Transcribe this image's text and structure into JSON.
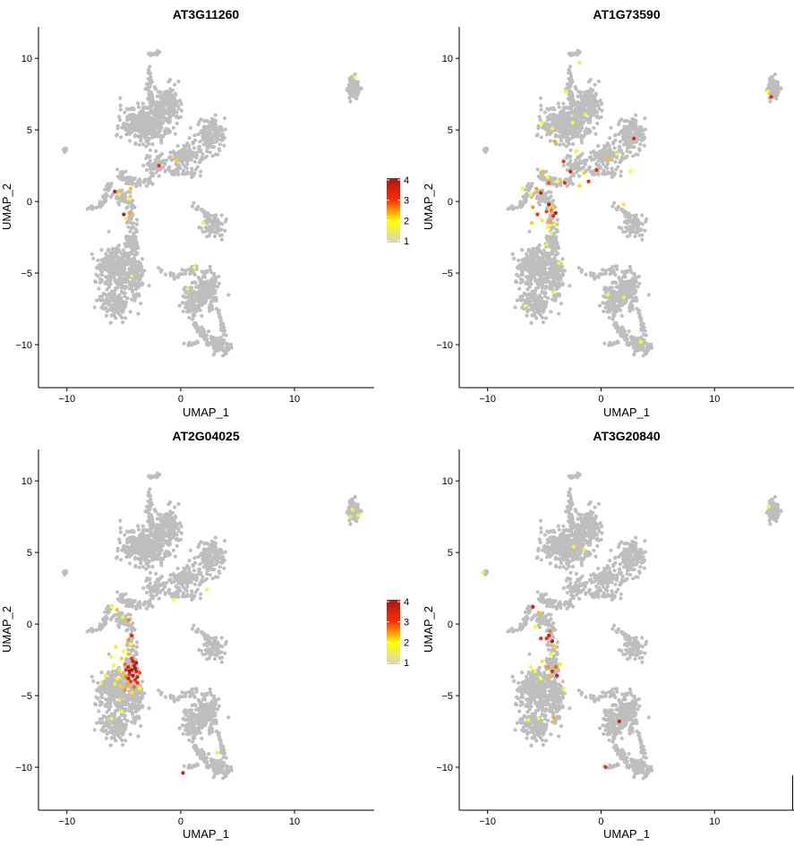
{
  "chart_data": [
    {
      "type": "scatter",
      "title": "AT3G11260",
      "xlabel": "UMAP_1",
      "ylabel": "UMAP_2",
      "xlim": [
        -12.5,
        17
      ],
      "ylim": [
        -13,
        12.2
      ],
      "xticks": [
        -10,
        0,
        10
      ],
      "xtick_labels": [
        "−10",
        "0",
        "10"
      ],
      "yticks": [
        10,
        5,
        0,
        -5,
        -10
      ],
      "ytick_labels": [
        "10",
        "5",
        "0",
        "−5",
        "−10"
      ],
      "legend": {
        "position": "right",
        "min": 1,
        "max": 4,
        "ticks": [
          4,
          3,
          2,
          1
        ],
        "tick_labels": [
          "4",
          "3",
          "2",
          "1"
        ]
      },
      "expressed_points": [
        [
          -5.8,
          0.7,
          3.6
        ],
        [
          -5.4,
          0.5,
          2.1
        ],
        [
          -4.4,
          0.9,
          2.3
        ],
        [
          -4.6,
          0.2,
          1.9
        ],
        [
          -5.0,
          -0.9,
          3.8
        ],
        [
          -4.5,
          -0.8,
          2.4
        ],
        [
          -4.8,
          -1.2,
          1.8
        ],
        [
          2.0,
          -1.5,
          1.7
        ],
        [
          -1.9,
          2.5,
          3.0
        ],
        [
          -0.4,
          2.9,
          2.2
        ],
        [
          15.3,
          8.7,
          1.8
        ],
        [
          -4.3,
          -5.2,
          1.6
        ],
        [
          1.2,
          -4.6,
          1.9
        ],
        [
          0.6,
          -6.1,
          1.7
        ]
      ]
    },
    {
      "type": "scatter",
      "title": "AT1G73590",
      "xlabel": "UMAP_1",
      "ylabel": "UMAP_2",
      "xlim": [
        -12.5,
        17
      ],
      "ylim": [
        -13,
        12.2
      ],
      "xticks": [
        -10,
        0,
        10
      ],
      "xtick_labels": [
        "−10",
        "0",
        "10"
      ],
      "yticks": [
        10,
        5,
        0,
        -5,
        -10
      ],
      "ytick_labels": [
        "10",
        "5",
        "0",
        "−5",
        "−10"
      ],
      "legend": null,
      "expressed_points": [
        [
          -5.2,
          5.5,
          2.0
        ],
        [
          -4.3,
          5.1,
          1.8
        ],
        [
          -2.5,
          5.5,
          1.9
        ],
        [
          -1.4,
          6.1,
          1.7
        ],
        [
          -3.1,
          7.7,
          1.8
        ],
        [
          -1.9,
          9.7,
          1.6
        ],
        [
          -4.1,
          4.2,
          2.4
        ],
        [
          -2.2,
          3.5,
          2.0
        ],
        [
          -2.7,
          2.1,
          3.4
        ],
        [
          -3.3,
          2.8,
          3.0
        ],
        [
          -1.5,
          2.0,
          2.2
        ],
        [
          -0.4,
          2.2,
          3.1
        ],
        [
          0.6,
          3.0,
          2.3
        ],
        [
          1.4,
          3.3,
          1.9
        ],
        [
          2.6,
          2.1,
          2.0
        ],
        [
          2.9,
          4.4,
          3.3
        ],
        [
          -5.1,
          2.1,
          2.3
        ],
        [
          -4.7,
          1.7,
          1.9
        ],
        [
          -5.7,
          0.9,
          2.4
        ],
        [
          -5.3,
          0.6,
          3.5
        ],
        [
          -6.2,
          0.5,
          2.0
        ],
        [
          -4.6,
          1.3,
          2.8
        ],
        [
          -3.8,
          1.4,
          2.0
        ],
        [
          -3.2,
          1.3,
          3.2
        ],
        [
          -1.9,
          1.1,
          2.2
        ],
        [
          -1.1,
          1.4,
          3.3
        ],
        [
          -6.0,
          -0.4,
          2.5
        ],
        [
          -5.6,
          -0.9,
          3.0
        ],
        [
          -5.2,
          -1.3,
          2.1
        ],
        [
          -4.6,
          -0.2,
          3.7
        ],
        [
          -4.4,
          -0.6,
          2.6
        ],
        [
          -4.2,
          -1.0,
          3.2
        ],
        [
          -4.5,
          -1.4,
          2.4
        ],
        [
          -4.1,
          -1.6,
          1.9
        ],
        [
          -4.8,
          -0.7,
          2.9
        ],
        [
          -4.3,
          -0.3,
          2.2
        ],
        [
          -4.0,
          -0.8,
          3.8
        ],
        [
          -4.7,
          -1.8,
          2.0
        ],
        [
          -4.4,
          -2.2,
          1.7
        ],
        [
          -4.8,
          -3.0,
          1.8
        ],
        [
          -6.9,
          0.9,
          1.9
        ],
        [
          -6.1,
          -1.5,
          2.2
        ],
        [
          -3.7,
          -4.3,
          1.9
        ],
        [
          -4.2,
          -6.3,
          1.7
        ],
        [
          -6.7,
          -7.3,
          1.8
        ],
        [
          0.6,
          -6.5,
          1.9
        ],
        [
          2.0,
          -6.7,
          1.7
        ],
        [
          3.5,
          -9.8,
          2.0
        ],
        [
          2.0,
          -0.2,
          2.1
        ],
        [
          15.0,
          7.3,
          3.2
        ],
        [
          14.7,
          7.7,
          2.0
        ]
      ]
    },
    {
      "type": "scatter",
      "title": "AT2G04025",
      "xlabel": "UMAP_1",
      "ylabel": "UMAP_2",
      "xlim": [
        -12.5,
        17
      ],
      "ylim": [
        -13,
        12.2
      ],
      "xticks": [
        -10,
        0,
        10
      ],
      "xtick_labels": [
        "−10",
        "0",
        "10"
      ],
      "yticks": [
        10,
        5,
        0,
        -5,
        -10
      ],
      "ytick_labels": [
        "10",
        "5",
        "0",
        "−5",
        "−10"
      ],
      "legend": {
        "position": "right",
        "min": 1,
        "max": 4,
        "ticks": [
          4,
          3,
          2,
          1
        ],
        "tick_labels": [
          "4",
          "3",
          "2",
          "1"
        ]
      },
      "expressed_points": [
        [
          -6.1,
          1.2,
          2.0
        ],
        [
          -5.6,
          1.0,
          2.3
        ],
        [
          -5.1,
          0.5,
          1.9
        ],
        [
          -4.6,
          0.3,
          2.6
        ],
        [
          -4.3,
          -0.8,
          3.2
        ],
        [
          -4.6,
          -1.1,
          2.5
        ],
        [
          -4.4,
          -1.4,
          2.0
        ],
        [
          -5.7,
          -1.6,
          2.1
        ],
        [
          -6.1,
          -2.3,
          1.8
        ],
        [
          -5.2,
          -2.4,
          2.2
        ],
        [
          -4.9,
          -2.8,
          2.7
        ],
        [
          -4.6,
          -3.0,
          3.4
        ],
        [
          -4.3,
          -3.2,
          3.9
        ],
        [
          -4.1,
          -2.9,
          3.7
        ],
        [
          -3.9,
          -3.3,
          3.5
        ],
        [
          -4.2,
          -3.6,
          3.8
        ],
        [
          -4.5,
          -3.5,
          3.1
        ],
        [
          -4.8,
          -3.7,
          2.6
        ],
        [
          -5.1,
          -3.5,
          2.3
        ],
        [
          -5.4,
          -3.2,
          2.1
        ],
        [
          -4.0,
          -3.9,
          3.3
        ],
        [
          -4.4,
          -4.0,
          2.9
        ],
        [
          -4.7,
          -4.2,
          2.4
        ],
        [
          -4.1,
          -4.4,
          2.7
        ],
        [
          -3.8,
          -3.7,
          3.6
        ],
        [
          -3.8,
          -4.1,
          3.0
        ],
        [
          -4.2,
          -2.6,
          3.6
        ],
        [
          -4.0,
          -3.1,
          4.0
        ],
        [
          -4.6,
          -3.8,
          3.5
        ],
        [
          -3.9,
          -2.7,
          3.9
        ],
        [
          -5.6,
          -3.8,
          2.0
        ],
        [
          -5.9,
          -2.9,
          1.9
        ],
        [
          -5.3,
          -4.3,
          2.2
        ],
        [
          -4.9,
          -4.6,
          2.5
        ],
        [
          -4.3,
          -4.8,
          2.1
        ],
        [
          -3.6,
          -4.5,
          2.0
        ],
        [
          -5.8,
          -4.2,
          1.8
        ],
        [
          -6.6,
          -3.6,
          1.9
        ],
        [
          -7.0,
          -4.1,
          1.7
        ],
        [
          -5.4,
          -5.3,
          1.8
        ],
        [
          -5.2,
          -6.1,
          1.9
        ],
        [
          -6.1,
          -6.6,
          1.7
        ],
        [
          -4.6,
          -2.1,
          2.3
        ],
        [
          -5.0,
          -1.9,
          2.0
        ],
        [
          -4.3,
          -2.4,
          3.0
        ],
        [
          -3.6,
          -3.4,
          2.8
        ],
        [
          -4.5,
          -3.3,
          4.0
        ],
        [
          -4.8,
          -3.2,
          3.2
        ],
        [
          0.2,
          -10.4,
          3.6
        ],
        [
          3.2,
          -9.0,
          1.7
        ],
        [
          -0.6,
          1.7,
          1.8
        ],
        [
          2.3,
          2.4,
          1.7
        ],
        [
          15.1,
          8.0,
          1.8
        ],
        [
          15.6,
          7.6,
          2.0
        ],
        [
          14.9,
          7.5,
          1.7
        ]
      ]
    },
    {
      "type": "scatter",
      "title": "AT3G20840",
      "xlabel": "UMAP_1",
      "ylabel": "UMAP_2",
      "xlim": [
        -12.5,
        17
      ],
      "ylim": [
        -13,
        12.2
      ],
      "xticks": [
        -10,
        0,
        10
      ],
      "xtick_labels": [
        "−10",
        "0",
        "10"
      ],
      "yticks": [
        10,
        5,
        0,
        -5,
        -10
      ],
      "ytick_labels": [
        "10",
        "5",
        "0",
        "−5",
        "−10"
      ],
      "legend": null,
      "expressed_points": [
        [
          -6.0,
          1.2,
          3.4
        ],
        [
          -5.5,
          0.8,
          2.3
        ],
        [
          -5.8,
          -0.2,
          2.0
        ],
        [
          -5.3,
          -1.0,
          3.1
        ],
        [
          -4.6,
          -0.8,
          3.6
        ],
        [
          -4.3,
          -1.2,
          3.8
        ],
        [
          -4.5,
          -0.5,
          2.6
        ],
        [
          -4.1,
          -1.6,
          2.2
        ],
        [
          -4.8,
          -1.0,
          3.0
        ],
        [
          -4.4,
          -2.1,
          1.9
        ],
        [
          -5.2,
          -2.6,
          2.1
        ],
        [
          -4.7,
          -3.0,
          2.5
        ],
        [
          -4.3,
          -3.3,
          3.2
        ],
        [
          -4.0,
          -3.0,
          2.7
        ],
        [
          -4.5,
          -3.6,
          2.3
        ],
        [
          -3.9,
          -3.6,
          3.5
        ],
        [
          -5.3,
          -3.8,
          2.0
        ],
        [
          -5.8,
          -3.3,
          1.9
        ],
        [
          -6.2,
          -3.0,
          1.8
        ],
        [
          -3.6,
          -2.8,
          2.1
        ],
        [
          -6.4,
          -6.7,
          2.0
        ],
        [
          -5.5,
          -6.6,
          1.8
        ],
        [
          -4.2,
          -6.5,
          2.4
        ],
        [
          -3.3,
          -4.5,
          1.8
        ],
        [
          -2.4,
          5.4,
          1.9
        ],
        [
          -1.5,
          5.2,
          1.7
        ],
        [
          1.6,
          -6.8,
          3.6
        ],
        [
          0.4,
          -10.0,
          3.1
        ],
        [
          -10.4,
          3.6,
          1.8
        ],
        [
          14.8,
          8.2,
          1.8
        ]
      ]
    }
  ]
}
